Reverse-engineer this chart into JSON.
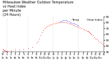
{
  "title": "Milwaukee Weather Outdoor Temperature\nvs Heat Index\nper Minute\n(24 Hours)",
  "title_fontsize": 3.5,
  "title_color": "#000000",
  "bg_color": "#ffffff",
  "plot_bg_color": "#ffffff",
  "grid_color": "#aaaaaa",
  "ylim": [
    30,
    90
  ],
  "xlim": [
    0,
    1440
  ],
  "yticks": [
    30,
    40,
    50,
    60,
    70,
    80,
    90
  ],
  "ytick_fontsize": 3.0,
  "xtick_fontsize": 2.5,
  "xticks": [
    0,
    60,
    120,
    180,
    240,
    300,
    360,
    420,
    480,
    540,
    600,
    660,
    720,
    780,
    840,
    900,
    960,
    1020,
    1080,
    1140,
    1200,
    1260,
    1320,
    1380,
    1440
  ],
  "xtick_labels": [
    "12\n1a",
    "1\n2a",
    "2\n3a",
    "3\n4a",
    "4\n5a",
    "5\n6a",
    "6\n7a",
    "7\n8a",
    "8\n9a",
    "9\n10a",
    "10\n11a",
    "11\n12p",
    "12\n1p",
    "1\n2p",
    "2\n3p",
    "3\n4p",
    "4\n5p",
    "5\n6p",
    "6\n7p",
    "7\n8p",
    "8\n9p",
    "9\n10p",
    "10\n11p",
    "11\n12a",
    "12"
  ],
  "vgrid_positions": [
    60,
    360,
    720,
    1080,
    1440
  ],
  "temp_color": "#ff0000",
  "heat_color": "#0000ff",
  "legend_temp_label": "Temp",
  "legend_heat_label": "Heat Index",
  "legend_fontsize": 3.0,
  "dot_size": 0.3,
  "temp_data_x": [
    0,
    10,
    20,
    30,
    40,
    50,
    60,
    120,
    180,
    240,
    300,
    360,
    420,
    480,
    500,
    520,
    540,
    560,
    580,
    600,
    620,
    640,
    660,
    680,
    700,
    720,
    740,
    760,
    780,
    800,
    820,
    840,
    860,
    880,
    900,
    920,
    940,
    960,
    980,
    1000,
    1020,
    1040,
    1060,
    1080,
    1100,
    1120,
    1140,
    1160,
    1180,
    1200,
    1210,
    1220,
    1230,
    1240,
    1250,
    1260,
    1280,
    1300,
    1320,
    1340,
    1360,
    1380,
    1400,
    1420,
    1440
  ],
  "temp_data_y": [
    35,
    34,
    33,
    33,
    32,
    32,
    32,
    33,
    34,
    34,
    35,
    36,
    38,
    45,
    48,
    53,
    58,
    63,
    67,
    70,
    72,
    74,
    75,
    76,
    77,
    78,
    79,
    80,
    80,
    81,
    81,
    81,
    81,
    81,
    81,
    80,
    79,
    78,
    77,
    76,
    75,
    74,
    73,
    72,
    71,
    70,
    69,
    68,
    67,
    66,
    65,
    64,
    63,
    62,
    61,
    60,
    58,
    55,
    53,
    51,
    49,
    47,
    45,
    43,
    41
  ],
  "heat_data_x": [
    820,
    840,
    860,
    880,
    900,
    920,
    940,
    960,
    980,
    1000,
    1020,
    1040,
    1060,
    1080
  ],
  "heat_data_y": [
    82,
    83,
    84,
    84,
    84,
    83,
    82,
    81,
    80,
    79,
    78,
    77,
    76,
    75
  ]
}
